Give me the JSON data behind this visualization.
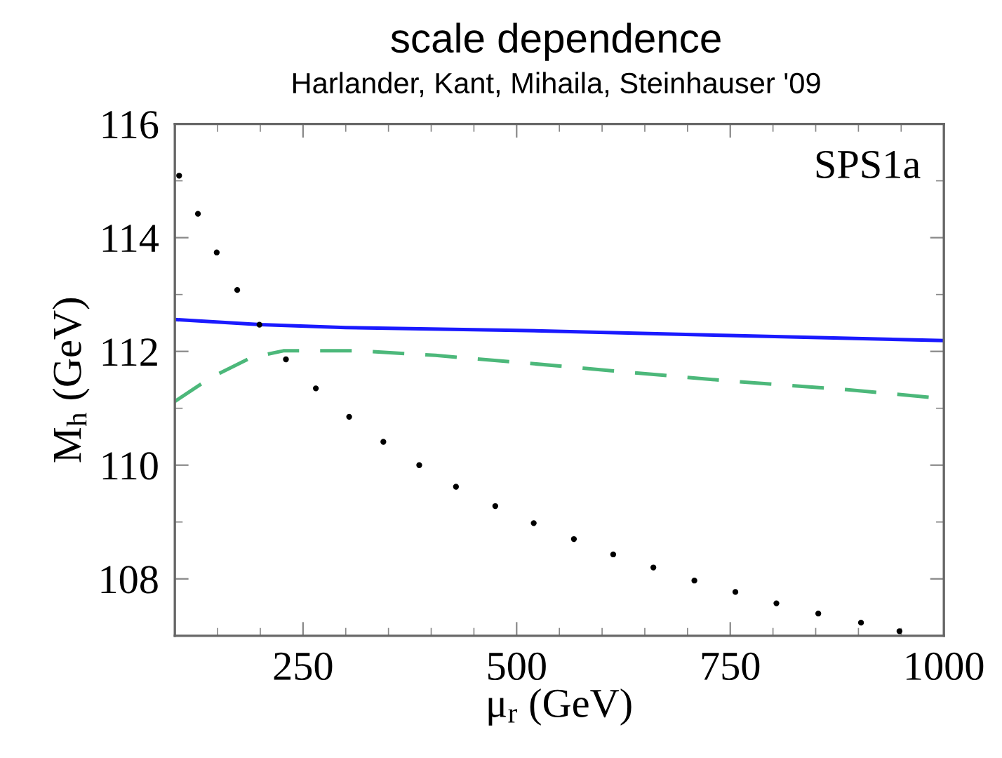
{
  "chart_data": {
    "type": "line",
    "title": "scale dependence",
    "subtitle": "Harlander, Kant, Mihaila, Steinhauser '09",
    "xlabel": "μ$_{r}$ (GeV)",
    "ylabel": "M$_{h}$ (GeV)",
    "annotations": [
      "SPS1a"
    ],
    "xlim": [
      100,
      1000
    ],
    "ylim": [
      107,
      116
    ],
    "xticks": [
      250,
      500,
      750,
      1000
    ],
    "yticks": [
      108,
      110,
      112,
      114,
      116
    ],
    "grid": false,
    "legend": false,
    "series": [
      {
        "type": "scatter",
        "color": "#000000",
        "marker": "circle",
        "x": [
          105,
          127,
          149,
          173,
          199,
          230,
          265,
          304,
          344,
          386,
          429,
          475,
          520,
          567,
          613,
          660,
          708,
          756,
          804,
          853,
          903,
          948
        ],
        "values": [
          115.09,
          114.42,
          113.74,
          113.08,
          112.47,
          111.86,
          111.35,
          110.85,
          110.41,
          110.0,
          109.62,
          109.28,
          108.98,
          108.7,
          108.43,
          108.2,
          107.97,
          107.77,
          107.57,
          107.39,
          107.23,
          107.08
        ]
      },
      {
        "color": "#1a1aff",
        "line_style": "solid",
        "x": [
          100,
          200,
          300,
          500,
          750,
          1000
        ],
        "values": [
          112.56,
          112.47,
          112.42,
          112.37,
          112.28,
          112.19
        ]
      },
      {
        "color": "#4cb87a",
        "line_style": "dashed",
        "x": [
          100,
          141,
          189,
          227,
          316,
          405,
          500,
          611,
          748,
          885,
          1000
        ],
        "values": [
          111.12,
          111.53,
          111.89,
          112.01,
          112.01,
          111.93,
          111.81,
          111.66,
          111.48,
          111.33,
          111.17
        ]
      }
    ]
  }
}
